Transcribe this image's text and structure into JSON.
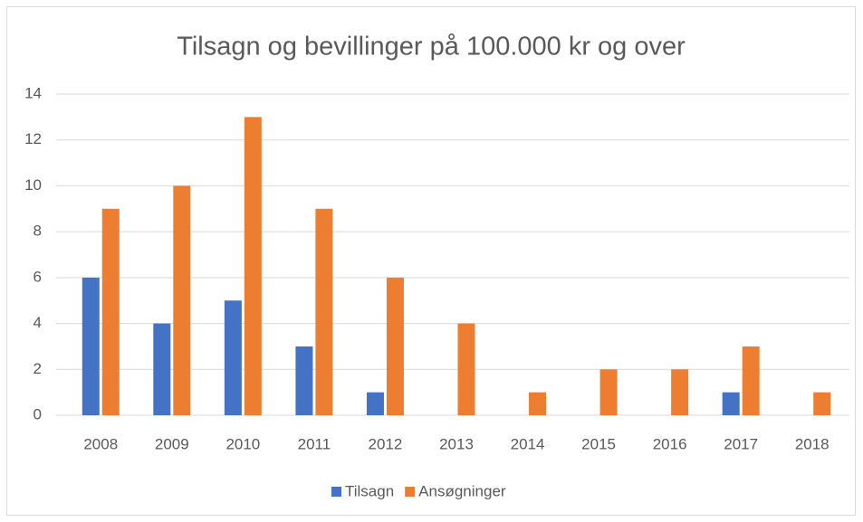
{
  "chart_data": {
    "type": "bar",
    "title": "Tilsagn og bevillinger på 100.000 kr og over",
    "categories": [
      "2008",
      "2009",
      "2010",
      "2011",
      "2012",
      "2013",
      "2014",
      "2015",
      "2016",
      "2017",
      "2018"
    ],
    "series": [
      {
        "name": "Tilsagn",
        "color": "#4472c4",
        "values": [
          6,
          4,
          5,
          3,
          1,
          0,
          0,
          0,
          0,
          1,
          0
        ]
      },
      {
        "name": "Ansøgninger",
        "color": "#ed7d31",
        "values": [
          9,
          10,
          13,
          9,
          6,
          4,
          1,
          2,
          2,
          3,
          1
        ]
      }
    ],
    "ylim": [
      0,
      14
    ],
    "yticks": [
      0,
      2,
      4,
      6,
      8,
      10,
      12,
      14
    ],
    "grid": true,
    "legend": "bottom"
  }
}
